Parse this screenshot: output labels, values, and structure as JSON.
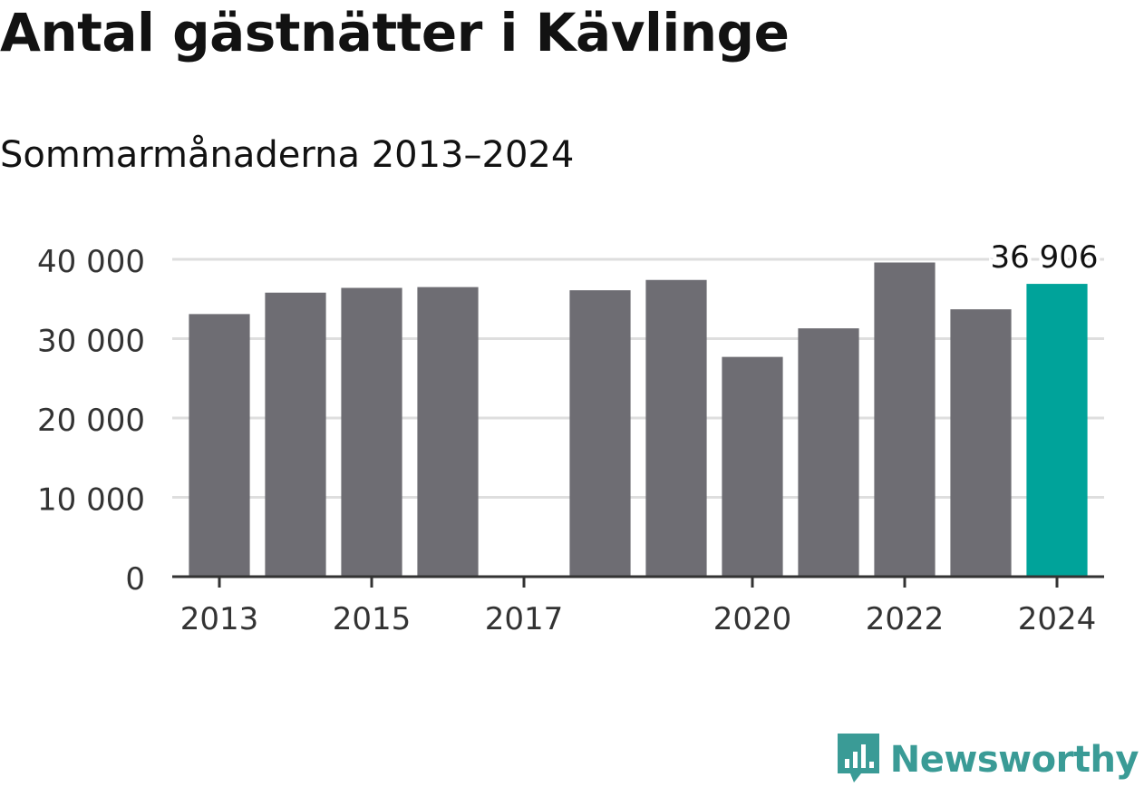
{
  "header": {
    "title": "Antal gästnätter i Kävlinge",
    "subtitle": "Sommarmånaderna 2013–2024"
  },
  "brand": {
    "name": "Newsworthy",
    "logo_icon": "bar-chart-speech-bubble-icon",
    "color": "#3a9b96"
  },
  "chart_data": {
    "type": "bar",
    "title": "Antal gästnätter i Kävlinge",
    "subtitle": "Sommarmånaderna 2013–2024",
    "xlabel": "",
    "ylabel": "",
    "categories": [
      "2013",
      "2014",
      "2015",
      "2016",
      "2017",
      "2018",
      "2019",
      "2020",
      "2021",
      "2022",
      "2023",
      "2024"
    ],
    "values": [
      33100,
      35800,
      36400,
      36500,
      null,
      36100,
      37400,
      27700,
      31300,
      39600,
      33700,
      36906
    ],
    "ylim": [
      0,
      40000
    ],
    "yticks": [
      0,
      10000,
      20000,
      30000,
      40000
    ],
    "ytick_labels": [
      "0",
      "10 000",
      "20 000",
      "30 000",
      "40 000"
    ],
    "xtick_labels": [
      "2013",
      "2015",
      "2017",
      "2020",
      "2022",
      "2024"
    ],
    "highlight": {
      "category": "2024",
      "label": "36 906"
    },
    "grid": true,
    "colors": {
      "bar": "#6e6d73",
      "highlight": "#00a39a",
      "grid": "#dedede",
      "axis": "#333333"
    }
  }
}
